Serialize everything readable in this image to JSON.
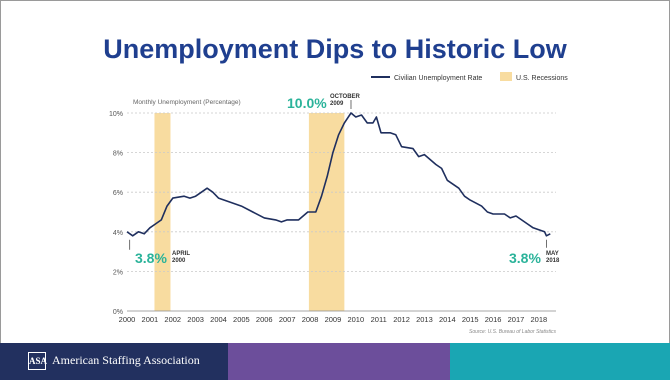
{
  "page": {
    "title": "Unemployment Dips to Historic Low",
    "organization": "American Staffing Association",
    "logo_text": "ASA",
    "colors": {
      "title": "#1f3f8f",
      "footer": [
        "#22305f",
        "#6c4e9b",
        "#1aa6b3"
      ]
    }
  },
  "chart_data": {
    "type": "line",
    "title": "",
    "ylabel": "Monthly Unemployment (Percentage)",
    "xlabel": "",
    "xlim": [
      2000,
      2018.75
    ],
    "ylim": [
      0,
      10
    ],
    "yticks": [
      "0%",
      "2%",
      "4%",
      "6%",
      "8%",
      "10%"
    ],
    "xticks": [
      "2000",
      "2001",
      "2002",
      "2003",
      "2004",
      "2005",
      "2006",
      "2007",
      "2008",
      "2009",
      "2010",
      "2011",
      "2012",
      "2013",
      "2014",
      "2015",
      "2016",
      "2017",
      "2018"
    ],
    "grid": true,
    "legend": {
      "placement": "top-right",
      "line_label": "Civilian Unemployment Rate",
      "band_label": "U.S. Recessions"
    },
    "recessions": [
      {
        "start": 2001.2,
        "end": 2001.9
      },
      {
        "start": 2007.95,
        "end": 2009.5
      }
    ],
    "series": [
      {
        "name": "Civilian Unemployment Rate",
        "color": "#1f2f5e",
        "points": [
          [
            2000.0,
            4.0
          ],
          [
            2000.25,
            3.8
          ],
          [
            2000.5,
            4.0
          ],
          [
            2000.75,
            3.9
          ],
          [
            2001.0,
            4.2
          ],
          [
            2001.25,
            4.4
          ],
          [
            2001.5,
            4.6
          ],
          [
            2001.75,
            5.3
          ],
          [
            2002.0,
            5.7
          ],
          [
            2002.5,
            5.8
          ],
          [
            2002.75,
            5.7
          ],
          [
            2003.0,
            5.8
          ],
          [
            2003.25,
            6.0
          ],
          [
            2003.5,
            6.2
          ],
          [
            2003.75,
            6.0
          ],
          [
            2004.0,
            5.7
          ],
          [
            2004.5,
            5.5
          ],
          [
            2005.0,
            5.3
          ],
          [
            2005.5,
            5.0
          ],
          [
            2006.0,
            4.7
          ],
          [
            2006.5,
            4.6
          ],
          [
            2006.75,
            4.5
          ],
          [
            2007.0,
            4.6
          ],
          [
            2007.5,
            4.6
          ],
          [
            2007.9,
            5.0
          ],
          [
            2008.25,
            5.0
          ],
          [
            2008.5,
            5.8
          ],
          [
            2008.75,
            6.8
          ],
          [
            2009.0,
            8.0
          ],
          [
            2009.25,
            8.9
          ],
          [
            2009.5,
            9.5
          ],
          [
            2009.79,
            10.0
          ],
          [
            2010.0,
            9.8
          ],
          [
            2010.25,
            9.9
          ],
          [
            2010.5,
            9.5
          ],
          [
            2010.75,
            9.5
          ],
          [
            2010.9,
            9.8
          ],
          [
            2011.1,
            9.0
          ],
          [
            2011.5,
            9.0
          ],
          [
            2011.75,
            8.9
          ],
          [
            2012.0,
            8.3
          ],
          [
            2012.5,
            8.2
          ],
          [
            2012.75,
            7.8
          ],
          [
            2013.0,
            7.9
          ],
          [
            2013.5,
            7.4
          ],
          [
            2013.75,
            7.2
          ],
          [
            2014.0,
            6.6
          ],
          [
            2014.5,
            6.2
          ],
          [
            2014.75,
            5.8
          ],
          [
            2015.0,
            5.6
          ],
          [
            2015.5,
            5.3
          ],
          [
            2015.75,
            5.0
          ],
          [
            2016.0,
            4.9
          ],
          [
            2016.5,
            4.9
          ],
          [
            2016.75,
            4.7
          ],
          [
            2017.0,
            4.8
          ],
          [
            2017.5,
            4.4
          ],
          [
            2017.75,
            4.2
          ],
          [
            2018.0,
            4.1
          ],
          [
            2018.25,
            4.0
          ],
          [
            2018.33,
            3.8
          ],
          [
            2018.5,
            3.9
          ]
        ]
      }
    ],
    "annotations": [
      {
        "value_text": "3.8%",
        "date_line1": "APRIL",
        "date_line2": "2000",
        "x": 2000.25,
        "y": 3.8,
        "color": "#2bb39a"
      },
      {
        "value_text": "10.0%",
        "date_line1": "OCTOBER",
        "date_line2": "2009",
        "x": 2009.79,
        "y": 10.0,
        "color": "#2bb39a"
      },
      {
        "value_text": "3.8%",
        "date_line1": "MAY",
        "date_line2": "2018",
        "x": 2018.33,
        "y": 3.8,
        "color": "#2bb39a"
      }
    ],
    "source": "Source: U.S. Bureau of Labor Statistics"
  }
}
